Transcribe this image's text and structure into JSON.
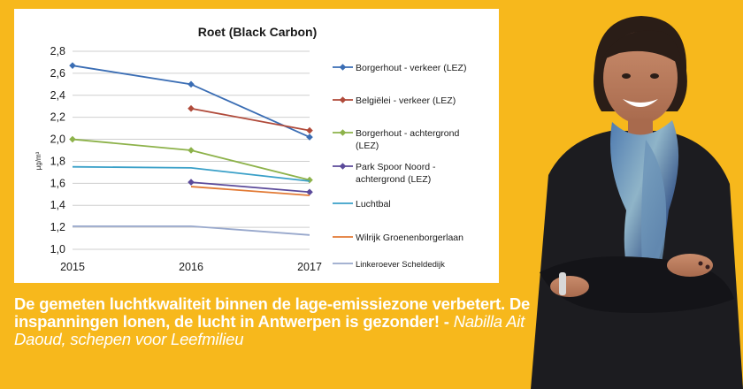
{
  "chart_data": {
    "type": "line",
    "title": "Roet (Black Carbon)",
    "ylabel": "µg/m³",
    "xlabel": "",
    "x": [
      "2015",
      "2016",
      "2017"
    ],
    "ylim": [
      1.0,
      2.8
    ],
    "yticks": [
      "1,0",
      "1,2",
      "1,4",
      "1,6",
      "1,8",
      "2,0",
      "2,2",
      "2,4",
      "2,6",
      "2,8"
    ],
    "grid": true,
    "legend_position": "right",
    "series": [
      {
        "name": "Borgerhout - verkeer (LEZ)",
        "legend_lines": [
          "Borgerhout - verkeer (LEZ)"
        ],
        "values": [
          2.67,
          2.5,
          2.02
        ],
        "color": "#3a6db4",
        "marker": "diamond"
      },
      {
        "name": "Belgiëlei - verkeer (LEZ)",
        "legend_lines": [
          "Belgiëlei - verkeer (LEZ)"
        ],
        "values": [
          null,
          2.28,
          2.08
        ],
        "color": "#b04a3a",
        "marker": "diamond"
      },
      {
        "name": "Borgerhout - achtergrond (LEZ)",
        "legend_lines": [
          "Borgerhout - achtergrond",
          "(LEZ)"
        ],
        "values": [
          2.0,
          1.9,
          1.63
        ],
        "color": "#8db24a",
        "marker": "diamond"
      },
      {
        "name": "Park Spoor Noord - achtergrond (LEZ)",
        "legend_lines": [
          "Park Spoor Noord -",
          "achtergrond (LEZ)"
        ],
        "values": [
          null,
          1.61,
          1.52
        ],
        "color": "#5b4a9a",
        "marker": "diamond"
      },
      {
        "name": "Luchtbal",
        "legend_lines": [
          "Luchtbal"
        ],
        "values": [
          1.75,
          1.74,
          1.62
        ],
        "color": "#3aa0c8",
        "marker": "none"
      },
      {
        "name": "Wilrijk Groenenborgerlaan",
        "legend_lines": [
          "Wilrijk Groenenborgerlaan"
        ],
        "values": [
          null,
          1.57,
          1.49
        ],
        "color": "#e27a35",
        "marker": "none"
      },
      {
        "name": "Linkeroever Scheldedijk",
        "legend_lines": [
          "Linkeroever Scheldedijk"
        ],
        "values": [
          1.21,
          1.21,
          1.13
        ],
        "color": "#98a8cc",
        "marker": "none"
      }
    ]
  },
  "caption": {
    "quote": "De gemeten luchtkwaliteit binnen de lage-emissiezone verbetert. De inspanningen lonen, de lucht in Antwerpen is gezonder!",
    "separator": " - ",
    "author": "Nabilla Ait Daoud, schepen voor Leefmilieu"
  },
  "colors": {
    "background": "#f7b81c",
    "caption_text": "#ffffff"
  }
}
